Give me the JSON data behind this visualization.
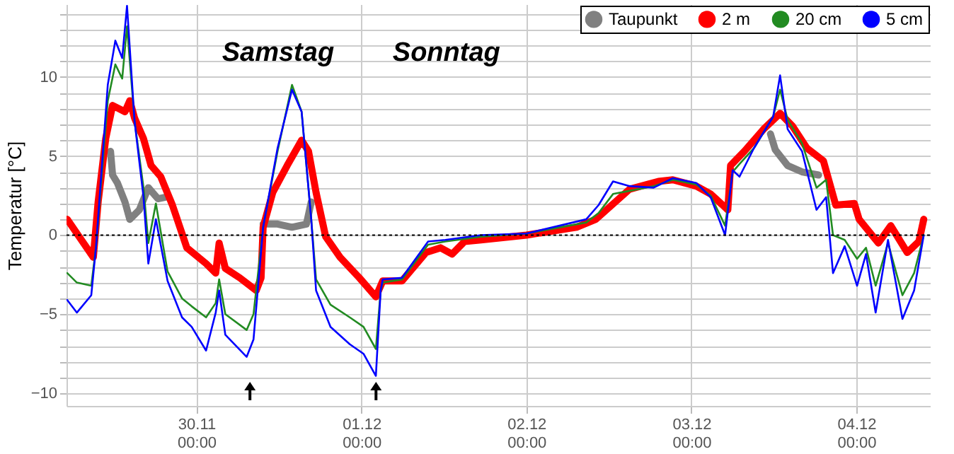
{
  "chart_data": {
    "type": "line",
    "ylabel": "Temperatur [°C]",
    "annotations": [
      "Samstag",
      "Sonntag"
    ],
    "legend": "top right",
    "grid": true,
    "marker": "none",
    "line_style": "solid",
    "xlim": [
      "--11-29T05:06",
      "--12-04T10:42"
    ],
    "xticks": [
      {
        "value": "--11-30T00:00",
        "label": "30.11\n00:00"
      },
      {
        "value": "--12-01T00:00",
        "label": "01.12\n00:00"
      },
      {
        "value": "--12-02T00:00",
        "label": "02.12\n00:00"
      },
      {
        "value": "--12-03T00:00",
        "label": "03.12\n00:00"
      },
      {
        "value": "--12-04T00:00",
        "label": "04.12\n00:00"
      }
    ],
    "ylim": [
      -10.8,
      14.6
    ],
    "yticks": [
      {
        "value": -10,
        "label": "−10"
      },
      {
        "value": -9,
        "label": null
      },
      {
        "value": -8,
        "label": null
      },
      {
        "value": -7,
        "label": null
      },
      {
        "value": -6,
        "label": null
      },
      {
        "value": -5,
        "label": "−5"
      },
      {
        "value": -4,
        "label": null
      },
      {
        "value": -3,
        "label": null
      },
      {
        "value": -2,
        "label": null
      },
      {
        "value": -1,
        "label": null
      },
      0,
      {
        "value": 1,
        "label": null
      },
      {
        "value": 2,
        "label": null
      },
      {
        "value": 3,
        "label": null
      },
      {
        "value": 4,
        "label": null
      },
      5,
      {
        "value": 6,
        "label": null
      },
      {
        "value": 7,
        "label": null
      },
      {
        "value": 8,
        "label": null
      },
      {
        "value": 9,
        "label": null
      },
      10,
      {
        "value": 11,
        "label": null
      },
      {
        "value": 12,
        "label": null
      },
      {
        "value": 13,
        "label": null
      },
      {
        "value": 14,
        "label": null
      }
    ],
    "ref_lines": [
      {
        "axis": "y",
        "value": 0,
        "color": "#000000",
        "line_style": "dotted"
      }
    ],
    "series": [
      {
        "name": "Taupunkt",
        "color": "#808080",
        "x": [
          "--11-29T11:30",
          "--11-29T11:48",
          "--11-29T12:30",
          "--11-29T13:36",
          "--11-29T14:18",
          "--11-29T15:42",
          "--11-29T17:00",
          "--11-29T18:24",
          "--11-29T19:30",
          "--11-30T00:00",
          "--11-30T09:42",
          "--11-30T11:48",
          "--11-30T13:54",
          "--11-30T16:00",
          "--11-30T16:42",
          "--12-02T00:00",
          "--12-03T11:30",
          "--12-03T12:12",
          "--12-03T14:00",
          "--12-03T16:06",
          "--12-03T18:30"
        ],
        "values": [
          5.3,
          3.8,
          3.3,
          2.1,
          1.0,
          1.6,
          3.0,
          2.3,
          2.4,
          null,
          0.7,
          0.7,
          0.5,
          0.7,
          2.1,
          null,
          6.4,
          5.4,
          4.4,
          4.0,
          3.8
        ]
      },
      {
        "name": "2 m",
        "color": "#ff0000",
        "x": [
          "--11-29T05:12",
          "--11-29T09:00",
          "--11-29T09:42",
          "--11-29T10:48",
          "--11-29T11:48",
          "--11-29T13:36",
          "--11-29T14:18",
          "--11-29T15:00",
          "--11-29T16:18",
          "--11-29T17:24",
          "--11-29T18:48",
          "--11-29T20:30",
          "--11-29T22:36",
          "--11-30T01:24",
          "--11-30T02:48",
          "--11-30T03:18",
          "--11-30T04:12",
          "--11-30T06:18",
          "--11-30T08:42",
          "--11-30T09:24",
          "--11-30T09:42",
          "--11-30T11:06",
          "--11-30T13:12",
          "--11-30T15:18",
          "--11-30T16:18",
          "--11-30T17:24",
          "--11-30T18:48",
          "--11-30T20:54",
          "--11-30T23:42",
          "--12-01T02:06",
          "--12-01T03:06",
          "--12-01T05:54",
          "--12-01T09:24",
          "--12-01T11:30",
          "--12-01T13:12",
          "--12-01T15:00",
          "--12-01T17:24",
          "--12-02T00:00",
          "--12-02T07:18",
          "--12-02T10:06",
          "--12-02T15:00",
          "--12-02T19:12",
          "--12-02T21:18",
          "--12-03T00:42",
          "--12-03T02:48",
          "--12-03T05:18",
          "--12-03T05:42",
          "--12-03T07:42",
          "--12-03T10:30",
          "--12-03T12:54",
          "--12-03T14:42",
          "--12-03T16:48",
          "--12-03T19:12",
          "--12-03T21:00",
          "--12-03T23:42",
          "--12-04T00:24",
          "--12-04T03:12",
          "--12-04T05:00",
          "--12-04T07:24",
          "--12-04T09:06",
          "--12-04T09:48"
        ],
        "values": [
          1.0,
          -1.4,
          2.1,
          6.1,
          8.2,
          7.8,
          8.5,
          7.4,
          6.1,
          4.4,
          3.7,
          1.9,
          -0.8,
          -1.8,
          -2.4,
          -0.5,
          -2.1,
          -2.7,
          -3.5,
          -2.7,
          0.5,
          2.7,
          4.4,
          6.0,
          5.3,
          2.7,
          -0.1,
          -1.4,
          -2.7,
          -3.9,
          -2.9,
          -2.9,
          -1.1,
          -0.8,
          -1.2,
          -0.4,
          -0.3,
          0.0,
          0.5,
          1.0,
          2.9,
          3.4,
          3.5,
          3.1,
          2.6,
          1.6,
          4.4,
          5.3,
          6.7,
          7.7,
          6.9,
          5.5,
          4.7,
          1.9,
          2.0,
          1.0,
          -0.5,
          0.6,
          -1.1,
          -0.4,
          1.0
        ]
      },
      {
        "name": "20 cm",
        "color": "#228b22",
        "x": [
          "--11-29T05:12",
          "--11-29T06:36",
          "--11-29T08:42",
          "--11-29T09:24",
          "--11-29T11:06",
          "--11-29T12:12",
          "--11-29T13:12",
          "--11-29T13:54",
          "--11-29T15:00",
          "--11-29T16:18",
          "--11-29T17:00",
          "--11-29T18:06",
          "--11-29T19:48",
          "--11-29T21:54",
          "--11-29T23:18",
          "--11-30T01:24",
          "--11-30T02:48",
          "--11-30T03:18",
          "--11-30T04:12",
          "--11-30T07:18",
          "--11-30T08:18",
          "--11-30T09:42",
          "--11-30T11:48",
          "--11-30T13:54",
          "--11-30T15:18",
          "--11-30T16:42",
          "--11-30T17:24",
          "--11-30T19:30",
          "--11-30T22:18",
          "--12-01T00:18",
          "--12-01T02:06",
          "--12-01T02:48",
          "--12-01T03:06",
          "--12-01T05:54",
          "--12-01T09:42",
          "--12-01T12:12",
          "--12-01T17:24",
          "--12-02T00:00",
          "--12-02T08:42",
          "--12-02T10:30",
          "--12-02T12:36",
          "--12-02T15:00",
          "--12-02T18:30",
          "--12-02T21:18",
          "--12-03T00:42",
          "--12-03T02:48",
          "--12-03T04:54",
          "--12-03T06:00",
          "--12-03T07:00",
          "--12-03T09:06",
          "--12-03T11:54",
          "--12-03T12:54",
          "--12-03T14:00",
          "--12-03T16:06",
          "--12-03T18:12",
          "--12-03T19:36",
          "--12-03T20:36",
          "--12-03T22:18",
          "--12-04T00:06",
          "--12-04T01:24",
          "--12-04T02:48",
          "--12-04T04:36",
          "--12-04T06:42",
          "--12-04T08:24",
          "--12-04T09:48"
        ],
        "values": [
          -2.4,
          -3.0,
          -3.2,
          -0.7,
          8.5,
          10.8,
          9.9,
          13.2,
          7.2,
          3.0,
          -0.5,
          2.0,
          -2.3,
          -4.0,
          -4.5,
          -5.2,
          -4.3,
          -2.8,
          -5.0,
          -6.0,
          -5.0,
          0.5,
          5.3,
          9.5,
          7.8,
          1.0,
          -2.8,
          -4.4,
          -5.2,
          -5.8,
          -7.2,
          -3.5,
          -3.0,
          -2.8,
          -0.6,
          -0.4,
          -0.1,
          0.1,
          0.8,
          1.4,
          2.6,
          2.8,
          3.1,
          3.5,
          3.2,
          2.5,
          0.6,
          4.0,
          4.5,
          5.5,
          7.5,
          9.2,
          7.3,
          5.8,
          3.0,
          3.5,
          0.0,
          -0.3,
          -1.5,
          -0.8,
          -3.2,
          -0.5,
          -3.8,
          -2.4,
          0.0
        ]
      },
      {
        "name": "5 cm",
        "color": "#0000ff",
        "x": [
          "--11-29T05:12",
          "--11-29T06:36",
          "--11-29T08:42",
          "--11-29T09:24",
          "--11-29T11:06",
          "--11-29T12:12",
          "--11-29T13:12",
          "--11-29T13:54",
          "--11-29T15:00",
          "--11-29T16:18",
          "--11-29T17:00",
          "--11-29T18:06",
          "--11-29T19:48",
          "--11-29T21:54",
          "--11-29T23:18",
          "--11-30T01:24",
          "--11-30T02:48",
          "--11-30T03:18",
          "--11-30T04:12",
          "--11-30T07:18",
          "--11-30T08:18",
          "--11-30T09:42",
          "--11-30T11:48",
          "--11-30T13:54",
          "--11-30T15:18",
          "--11-30T16:42",
          "--11-30T17:24",
          "--11-30T19:30",
          "--11-30T22:18",
          "--12-01T00:18",
          "--12-01T02:06",
          "--12-01T02:48",
          "--12-01T03:06",
          "--12-01T05:54",
          "--12-01T09:42",
          "--12-01T12:12",
          "--12-01T17:24",
          "--12-02T00:00",
          "--12-02T08:42",
          "--12-02T10:30",
          "--12-02T12:36",
          "--12-02T15:00",
          "--12-02T18:30",
          "--12-02T21:18",
          "--12-03T00:42",
          "--12-03T02:48",
          "--12-03T04:54",
          "--12-03T06:00",
          "--12-03T07:00",
          "--12-03T09:06",
          "--12-03T11:54",
          "--12-03T12:54",
          "--12-03T14:00",
          "--12-03T16:06",
          "--12-03T18:12",
          "--12-03T19:36",
          "--12-03T20:36",
          "--12-03T22:18",
          "--12-04T00:06",
          "--12-04T01:24",
          "--12-04T02:48",
          "--12-04T04:36",
          "--12-04T06:42",
          "--12-04T08:24",
          "--12-04T09:48"
        ],
        "values": [
          -4.1,
          -4.9,
          -3.8,
          -0.7,
          9.5,
          12.3,
          11.2,
          14.5,
          7.2,
          2.4,
          -1.8,
          1.0,
          -2.9,
          -5.2,
          -5.8,
          -7.3,
          -4.9,
          -3.5,
          -6.3,
          -7.7,
          -6.6,
          0.5,
          5.5,
          9.2,
          7.8,
          1.0,
          -3.5,
          -5.8,
          -6.9,
          -7.5,
          -8.9,
          -3.5,
          -2.8,
          -2.7,
          -0.4,
          -0.3,
          0.0,
          0.1,
          1.0,
          1.9,
          3.4,
          3.1,
          3.0,
          3.6,
          3.3,
          2.4,
          0.0,
          4.1,
          3.7,
          5.5,
          7.5,
          10.1,
          6.7,
          5.3,
          1.6,
          2.4,
          -2.4,
          -0.7,
          -3.2,
          -1.2,
          -4.9,
          -0.3,
          -5.3,
          -3.5,
          0.0
        ]
      }
    ]
  }
}
